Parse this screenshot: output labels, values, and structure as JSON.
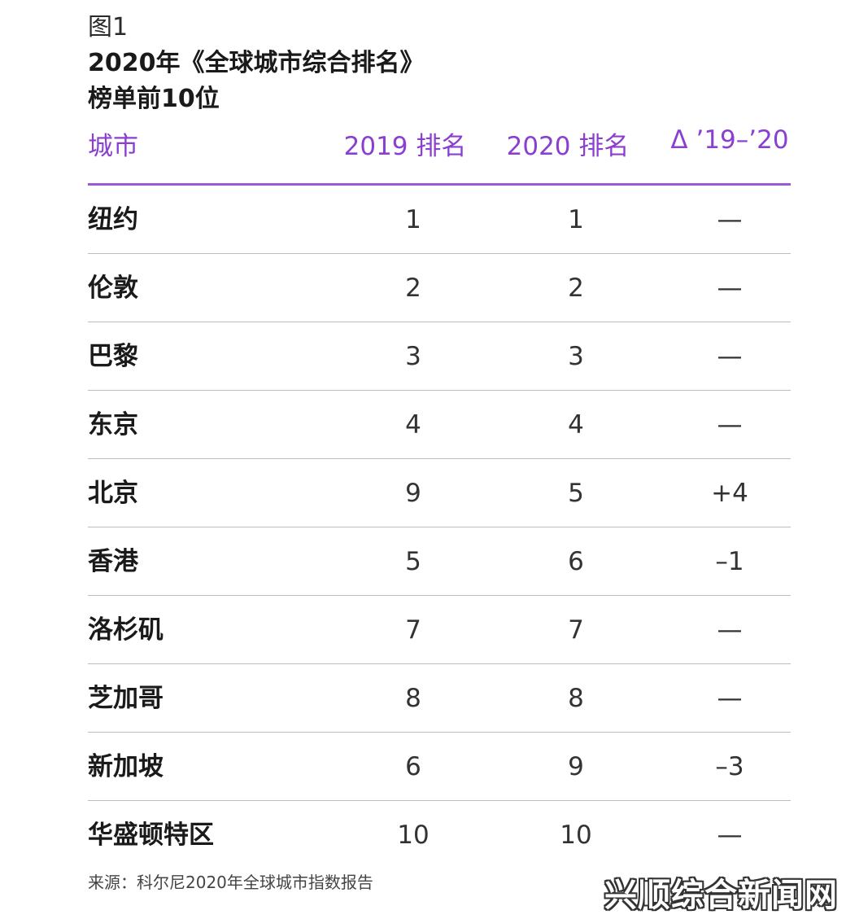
{
  "figure_label": "图1",
  "title_line1": "2020年《全球城市综合排名》",
  "title_line2": "榜单前10位",
  "headers": {
    "city": "城市",
    "rank_2019": "2019 排名",
    "rank_2020": "2020 排名",
    "delta": "Δ ’19–’20"
  },
  "rows": [
    {
      "city": "纽约",
      "rank_2019": "1",
      "rank_2020": "1",
      "delta": "—"
    },
    {
      "city": "伦敦",
      "rank_2019": "2",
      "rank_2020": "2",
      "delta": "—"
    },
    {
      "city": "巴黎",
      "rank_2019": "3",
      "rank_2020": "3",
      "delta": "—"
    },
    {
      "city": "东京",
      "rank_2019": "4",
      "rank_2020": "4",
      "delta": "—"
    },
    {
      "city": "北京",
      "rank_2019": "9",
      "rank_2020": "5",
      "delta": "+4"
    },
    {
      "city": "香港",
      "rank_2019": "5",
      "rank_2020": "6",
      "delta": "–1"
    },
    {
      "city": "洛杉矶",
      "rank_2019": "7",
      "rank_2020": "7",
      "delta": "—"
    },
    {
      "city": "芝加哥",
      "rank_2019": "8",
      "rank_2020": "8",
      "delta": "—"
    },
    {
      "city": "新加坡",
      "rank_2019": "6",
      "rank_2020": "9",
      "delta": "–3"
    },
    {
      "city": "华盛顿特区",
      "rank_2019": "10",
      "rank_2020": "10",
      "delta": "—"
    }
  ],
  "source": "来源：科尔尼2020年全球城市指数报告",
  "watermark": "兴顺综合新闻网",
  "colors": {
    "accent": "#8a3fd1",
    "rule": "#9b59d9",
    "divider": "#bdbdbd"
  }
}
